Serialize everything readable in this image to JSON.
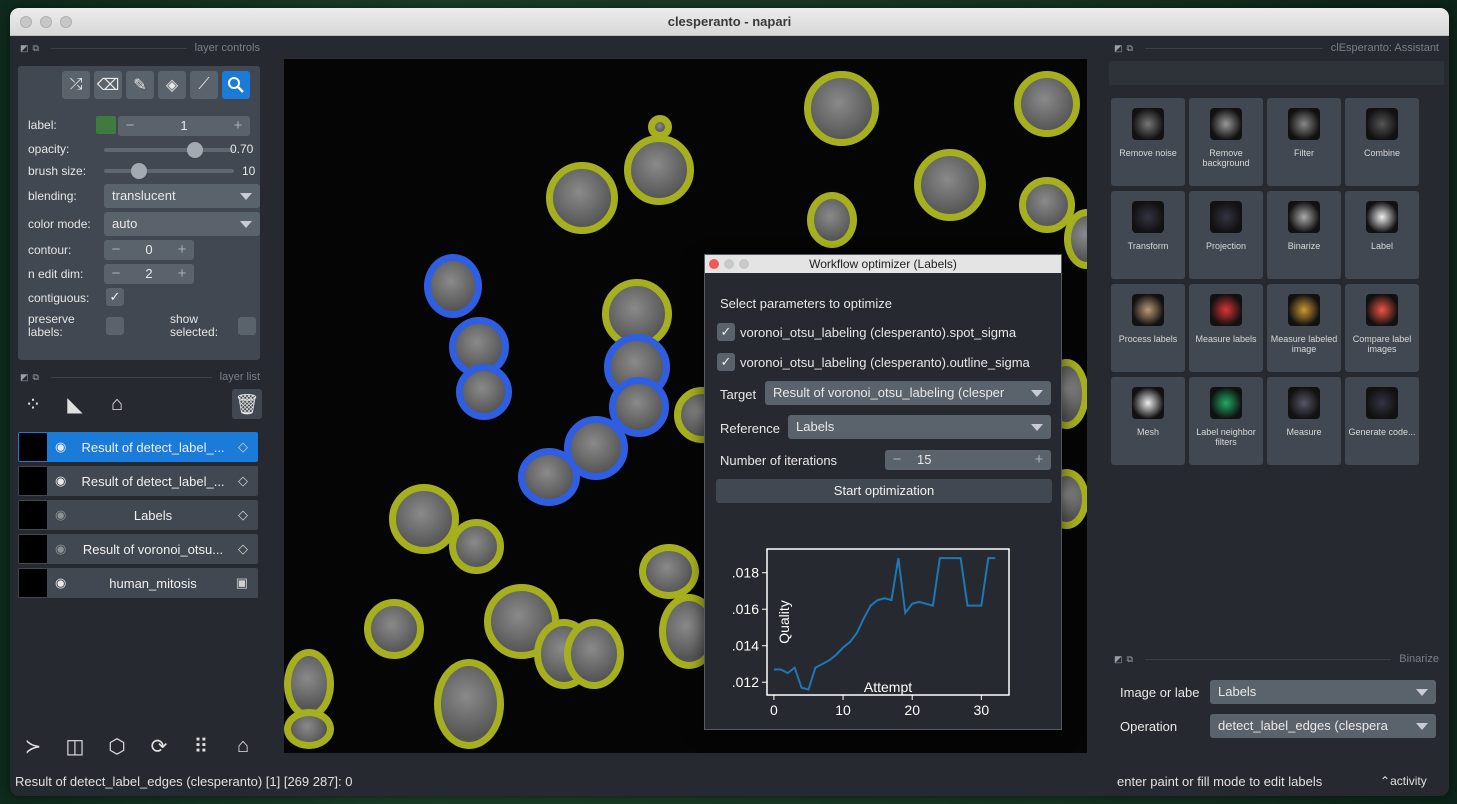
{
  "window": {
    "title": "clesperanto - napari"
  },
  "layer_controls": {
    "header": "layer controls",
    "label_label": "label:",
    "label_value": "1",
    "opacity_label": "opacity:",
    "opacity_value": "0.70",
    "opacity_fraction": 0.7,
    "brush_label": "brush size:",
    "brush_value": "10",
    "brush_fraction": 0.27,
    "blending_label": "blending:",
    "blending_value": "translucent",
    "color_mode_label": "color mode:",
    "color_mode_value": "auto",
    "contour_label": "contour:",
    "contour_value": "0",
    "n_edit_label": "n edit dim:",
    "n_edit_value": "2",
    "contiguous_label": "contiguous:",
    "preserve_label": "preserve labels:",
    "show_selected_label": "show selected:",
    "label_color": "#3f7a3f"
  },
  "layer_list": {
    "header": "layer list",
    "layers": [
      {
        "name": "Result of detect_label_...",
        "visible": true,
        "selected": true
      },
      {
        "name": "Result of detect_label_...",
        "visible": true,
        "selected": false
      },
      {
        "name": "Labels",
        "visible": false,
        "selected": false
      },
      {
        "name": "Result of voronoi_otsu...",
        "visible": false,
        "selected": false
      },
      {
        "name": "human_mitosis",
        "visible": true,
        "selected": false
      }
    ]
  },
  "dialog": {
    "title": "Workflow optimizer (Labels)",
    "select_text": "Select parameters to optimize",
    "param1": "voronoi_otsu_labeling (clesperanto).spot_sigma",
    "param2": "voronoi_otsu_labeling (clesperanto).outline_sigma",
    "target_label": "Target",
    "target_value": "Result of voronoi_otsu_labeling (clesper",
    "reference_label": "Reference",
    "reference_value": "Labels",
    "iterations_label": "Number of iterations",
    "iterations_value": "15",
    "start_button": "Start optimization"
  },
  "chart_data": {
    "type": "line",
    "xlabel": "Attempt",
    "ylabel": "Quality",
    "xlim": [
      -1,
      34
    ],
    "ylim": [
      0.0113,
      0.0193
    ],
    "xticks": [
      0,
      10,
      20,
      30
    ],
    "xtick_labels": [
      "0",
      "10",
      "20",
      "30"
    ],
    "yticks": [
      0.012,
      0.014,
      0.016,
      0.018
    ],
    "ytick_labels": [
      ".012",
      ".014",
      ".016",
      ".018"
    ],
    "color": "#1f77b4",
    "x": [
      0,
      1,
      2,
      3,
      4,
      5,
      6,
      7,
      8,
      9,
      10,
      11,
      12,
      13,
      14,
      15,
      16,
      17,
      18,
      19,
      20,
      21,
      22,
      23,
      24,
      25,
      26,
      27,
      28,
      29,
      30,
      31,
      32
    ],
    "values": [
      0.0127,
      0.0127,
      0.0125,
      0.0128,
      0.0117,
      0.0116,
      0.0128,
      0.013,
      0.0132,
      0.0135,
      0.0139,
      0.0142,
      0.0147,
      0.0155,
      0.0162,
      0.0165,
      0.0166,
      0.0165,
      0.0188,
      0.0158,
      0.0163,
      0.0164,
      0.0163,
      0.0162,
      0.0188,
      0.0188,
      0.0188,
      0.0188,
      0.0162,
      0.0162,
      0.0162,
      0.0188,
      0.0188
    ]
  },
  "assistant": {
    "header": "clEsperanto: Assistant",
    "items": [
      {
        "label": "Remove noise"
      },
      {
        "label": "Remove background"
      },
      {
        "label": "Filter"
      },
      {
        "label": "Combine"
      },
      {
        "label": "Transform"
      },
      {
        "label": "Projection"
      },
      {
        "label": "Binarize"
      },
      {
        "label": "Label"
      },
      {
        "label": "Process labels"
      },
      {
        "label": "Measure labels"
      },
      {
        "label": "Measure labeled image"
      },
      {
        "label": "Compare label images"
      },
      {
        "label": "Mesh"
      },
      {
        "label": "Label neighbor filters"
      },
      {
        "label": "Measure"
      },
      {
        "label": "Generate code..."
      }
    ]
  },
  "binarize": {
    "header": "Binarize",
    "image_label": "Image or labe",
    "image_value": "Labels",
    "operation_label": "Operation",
    "operation_value": "detect_label_edges (clespera"
  },
  "status": {
    "left": "Result of detect_label_edges (clesperanto) [1] [269 287]: 0",
    "right": "enter paint or fill mode to edit labels",
    "activity": "activity"
  }
}
